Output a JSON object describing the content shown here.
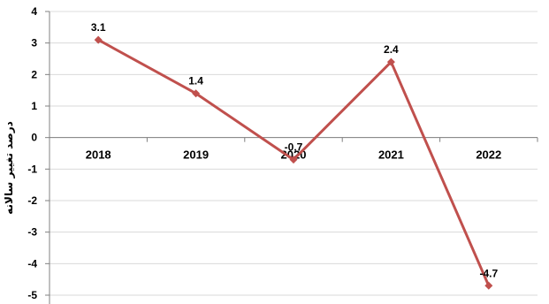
{
  "chart_data": {
    "type": "line",
    "title": "",
    "xlabel": "",
    "ylabel": "درصد تغییر سالانه",
    "categories": [
      "2018",
      "2019",
      "2020",
      "2021",
      "2022"
    ],
    "series": [
      {
        "values": [
          3.1,
          1.4,
          -0.7,
          2.4,
          -4.7
        ],
        "labels": [
          "3.1",
          "1.4",
          "-0.7",
          "2.4",
          "-4.7"
        ]
      }
    ],
    "ylim": [
      -5,
      4
    ],
    "yticks": [
      "4",
      "3",
      "2",
      "1",
      "0",
      "-1",
      "-2",
      "-3",
      "-4",
      "-5"
    ],
    "grid": true,
    "legend": "none",
    "colors": {
      "line": "#c0504d",
      "grid": "#d9d9d9",
      "axis": "#808080"
    }
  }
}
